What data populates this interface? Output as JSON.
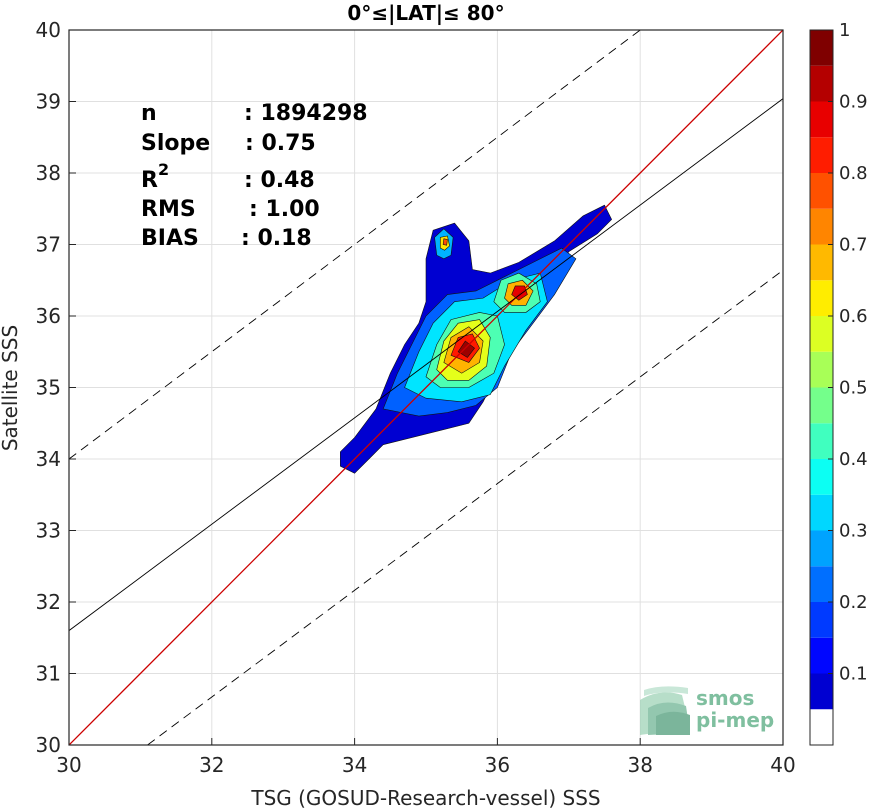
{
  "chart_data": {
    "type": "scatter",
    "title": "0°≤|LAT|≤ 80°",
    "xlabel": "TSG (GOSUD-Research-vessel) SSS",
    "ylabel": "Satellite SSS",
    "xlim": [
      30,
      40
    ],
    "ylim": [
      30,
      40
    ],
    "xticks": [
      "30",
      "32",
      "34",
      "36",
      "38",
      "40"
    ],
    "yticks": [
      "30",
      "31",
      "32",
      "33",
      "34",
      "35",
      "36",
      "37",
      "38",
      "39",
      "40"
    ],
    "grid": true,
    "stats": {
      "n": {
        "label": "n",
        "value": ": 1894298"
      },
      "slope": {
        "label": "Slope",
        "value": ": 0.75"
      },
      "r2": {
        "label": "R",
        "sup": "2",
        "value": ": 0.48"
      },
      "rms": {
        "label": "RMS",
        "value": ": 1.00"
      },
      "bias": {
        "label": "BIAS",
        "value": ": 0.18"
      }
    },
    "reference_lines": {
      "identity": {
        "color": "#cc0000",
        "x": [
          30,
          40
        ],
        "y": [
          30,
          40
        ]
      },
      "regression": {
        "color": "#000000",
        "x": [
          30,
          40
        ],
        "y": [
          31.6,
          39.04
        ]
      },
      "upper_bound": {
        "color": "#000000",
        "dash": true,
        "x": [
          30,
          38
        ],
        "y": [
          34.0,
          40.0
        ]
      },
      "lower_bound": {
        "color": "#000000",
        "dash": true,
        "x": [
          31.1,
          40
        ],
        "y": [
          30,
          36.64
        ]
      }
    },
    "density_peaks": [
      {
        "x": 35.55,
        "y": 35.55,
        "value": 1.0
      },
      {
        "x": 36.3,
        "y": 36.35,
        "value": 0.9
      },
      {
        "x": 35.25,
        "y": 37.05,
        "value": 0.75
      }
    ],
    "colorbar": {
      "ticks": [
        "0.1",
        "0.2",
        "0.3",
        "0.4",
        "0.5",
        "0.6",
        "0.7",
        "0.8",
        "0.9",
        "1"
      ],
      "range": [
        0,
        1
      ],
      "levels": 20,
      "colormap": "jet"
    }
  },
  "logo": {
    "line1": "smos",
    "line2": "pi-mep"
  }
}
